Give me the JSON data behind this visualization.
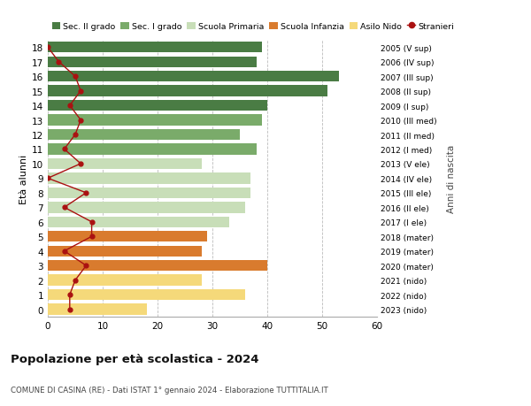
{
  "ages": [
    18,
    17,
    16,
    15,
    14,
    13,
    12,
    11,
    10,
    9,
    8,
    7,
    6,
    5,
    4,
    3,
    2,
    1,
    0
  ],
  "bar_values": [
    39,
    38,
    53,
    51,
    40,
    39,
    35,
    38,
    28,
    37,
    37,
    36,
    33,
    29,
    28,
    40,
    28,
    36,
    18
  ],
  "stranieri": [
    0,
    2,
    5,
    6,
    4,
    6,
    5,
    3,
    6,
    0,
    7,
    3,
    8,
    8,
    3,
    7,
    5,
    4,
    4
  ],
  "right_labels": [
    "2005 (V sup)",
    "2006 (IV sup)",
    "2007 (III sup)",
    "2008 (II sup)",
    "2009 (I sup)",
    "2010 (III med)",
    "2011 (II med)",
    "2012 (I med)",
    "2013 (V ele)",
    "2014 (IV ele)",
    "2015 (III ele)",
    "2016 (II ele)",
    "2017 (I ele)",
    "2018 (mater)",
    "2019 (mater)",
    "2020 (mater)",
    "2021 (nido)",
    "2022 (nido)",
    "2023 (nido)"
  ],
  "bar_colors": [
    "#4a7c44",
    "#4a7c44",
    "#4a7c44",
    "#4a7c44",
    "#4a7c44",
    "#7aab6a",
    "#7aab6a",
    "#7aab6a",
    "#c8deb8",
    "#c8deb8",
    "#c8deb8",
    "#c8deb8",
    "#c8deb8",
    "#d97b2e",
    "#d97b2e",
    "#d97b2e",
    "#f5d97a",
    "#f5d97a",
    "#f5d97a"
  ],
  "legend_labels": [
    "Sec. II grado",
    "Sec. I grado",
    "Scuola Primaria",
    "Scuola Infanzia",
    "Asilo Nido",
    "Stranieri"
  ],
  "legend_colors": [
    "#4a7c44",
    "#7aab6a",
    "#c8deb8",
    "#d97b2e",
    "#f5d97a",
    "#cc2222"
  ],
  "stranieri_color": "#aa1111",
  "title": "Popolazione per età scolastica - 2024",
  "subtitle": "COMUNE DI CASINA (RE) - Dati ISTAT 1° gennaio 2024 - Elaborazione TUTTITALIA.IT",
  "ylabel_left": "Età alunni",
  "ylabel_right": "Anni di nascita",
  "xlim": [
    0,
    60
  ],
  "xticks": [
    0,
    10,
    20,
    30,
    40,
    50,
    60
  ],
  "bg_color": "#ffffff",
  "grid_color": "#bbbbbb"
}
